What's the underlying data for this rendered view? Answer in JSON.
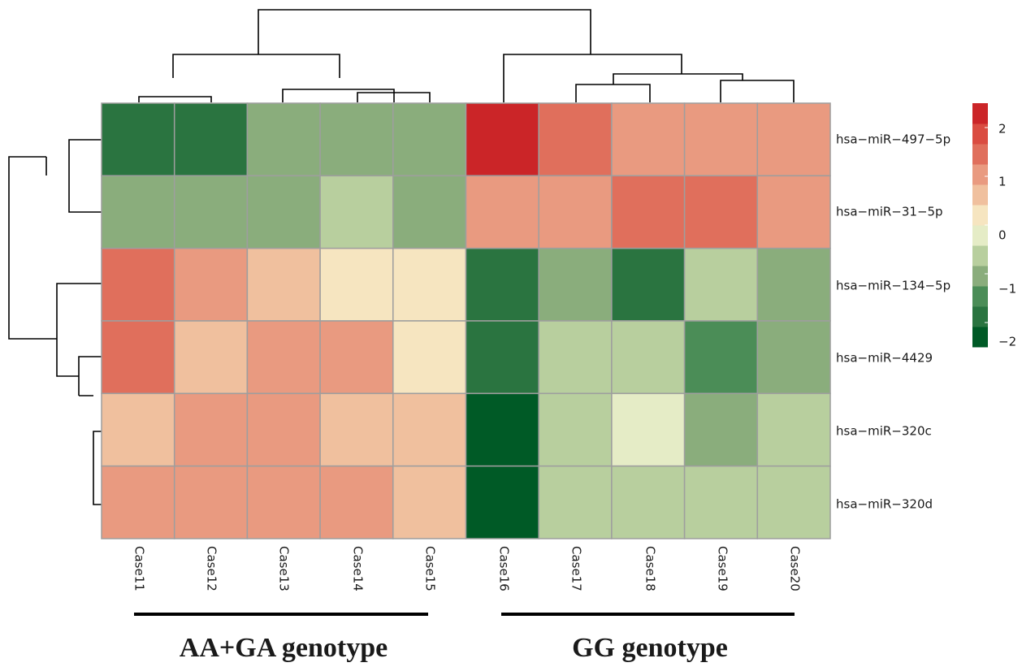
{
  "chart_data": {
    "type": "heatmap",
    "title": "",
    "rows": [
      "hsa−miR−497−5p",
      "hsa−miR−31−5p",
      "hsa−miR−134−5p",
      "hsa−miR−4429",
      "hsa−miR−320c",
      "hsa−miR−320d"
    ],
    "columns": [
      "Case11",
      "Case12",
      "Case13",
      "Case14",
      "Case15",
      "Case16",
      "Case17",
      "Case18",
      "Case19",
      "Case20"
    ],
    "values": [
      [
        -1.9,
        -1.9,
        -1.0,
        -1.0,
        -1.0,
        2.3,
        1.4,
        1.0,
        1.0,
        1.0
      ],
      [
        -1.0,
        -1.0,
        -1.0,
        -0.6,
        -1.0,
        1.0,
        1.0,
        1.4,
        1.4,
        1.0
      ],
      [
        1.4,
        1.0,
        0.6,
        0.1,
        0.1,
        -1.9,
        -1.0,
        -2.0,
        -0.6,
        -1.0
      ],
      [
        1.4,
        0.6,
        1.0,
        1.0,
        0.2,
        -1.9,
        -0.6,
        -0.6,
        -1.5,
        -1.0
      ],
      [
        0.6,
        1.0,
        1.0,
        0.7,
        0.7,
        -2.4,
        -0.6,
        -0.2,
        -1.0,
        -0.6
      ],
      [
        1.0,
        1.0,
        1.0,
        1.0,
        0.7,
        -2.4,
        -0.6,
        -0.6,
        -0.6,
        -0.6
      ]
    ],
    "color_scale": {
      "ticks": [
        "2",
        "1",
        "0",
        "−1",
        "−2"
      ],
      "tick_values": [
        2,
        1,
        0,
        -1,
        -2
      ],
      "range": [
        -2.5,
        2.5
      ],
      "colors": [
        "#005a26",
        "#2a7440",
        "#4b8d57",
        "#8aad7c",
        "#b8cf9e",
        "#e5ecc6",
        "#f6e5c0",
        "#f0c09e",
        "#e99a80",
        "#e06f5c",
        "#da4c41",
        "#cb2528"
      ]
    },
    "groups": [
      {
        "label": "AA+GA genotype",
        "columns": [
          "Case11",
          "Case12",
          "Case13",
          "Case14",
          "Case15"
        ]
      },
      {
        "label": "GG genotype",
        "columns": [
          "Case16",
          "Case17",
          "Case18",
          "Case19",
          "Case20"
        ]
      }
    ],
    "col_dendrogram": "((Case11,Case12),(Case13,(Case14,Case15))),(Case16,((Case17,Case18),(Case19,Case20)))",
    "row_dendrogram": "(hsa-miR-497-5p,hsa-miR-31-5p),(hsa-miR-134-5p,(hsa-miR-4429,(hsa-miR-320c,hsa-miR-320d)))"
  }
}
